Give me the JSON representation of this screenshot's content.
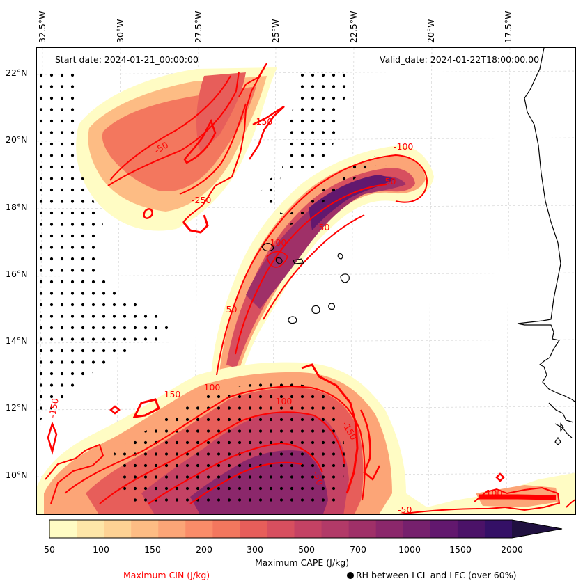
{
  "map": {
    "start_date": "Start date: 2024-01-21_00:00:00",
    "valid_date": "Valid_date: 2024-01-22T18:00:00.00",
    "lon_labels": [
      "32.5°W",
      "30°W",
      "27.5°W",
      "25°W",
      "22.5°W",
      "20°W",
      "17.5°W"
    ],
    "lat_labels": [
      "22°N",
      "20°N",
      "18°N",
      "16°N",
      "14°N",
      "12°N",
      "10°N"
    ],
    "cin_contour_labels": [
      "-50",
      "-100",
      "-150",
      "-250",
      "-50",
      "-100",
      "-150",
      "-50",
      "-100",
      "-50",
      "-150",
      "-100",
      "-50",
      "-50",
      "-100",
      "-150"
    ]
  },
  "colorbar": {
    "tick_labels": [
      "50",
      "100",
      "150",
      "200",
      "300",
      "500",
      "700",
      "1000",
      "1500",
      "2000"
    ],
    "label": "Maximum CAPE (J/kg)",
    "colors": [
      "#fffcc4",
      "#fee6a8",
      "#fed294",
      "#fdbc84",
      "#fca577",
      "#fa8c69",
      "#f3775e",
      "#e75e5a",
      "#d74f5f",
      "#c44264",
      "#b23a68",
      "#9f3068",
      "#8b276b",
      "#76206d",
      "#62186e",
      "#4b1268",
      "#341066",
      "#201040"
    ]
  },
  "legend": {
    "cin": "Maximum CIN (J/kg)",
    "cin_color": "#ff0000",
    "rh": "RH between LCL and LFC (over 60%)"
  }
}
